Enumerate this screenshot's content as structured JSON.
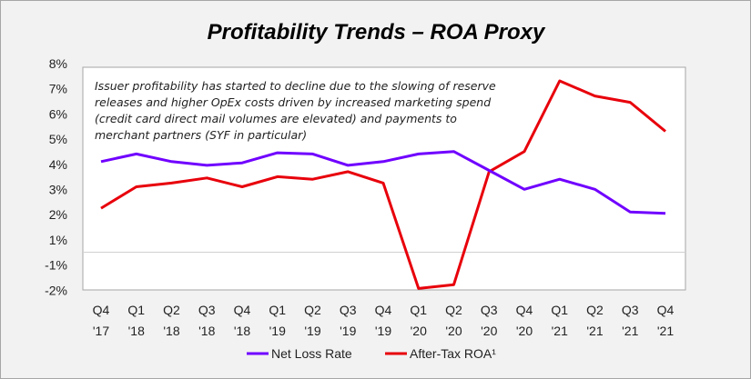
{
  "chart_data": {
    "type": "line",
    "title": "Profitability Trends – ROA Proxy",
    "xlabel": "",
    "ylabel": "",
    "ylim": [
      -2,
      8
    ],
    "y_tick_labels": [
      "8%",
      "7%",
      "6%",
      "5%",
      "4%",
      "3%",
      "2%",
      "1%",
      "-1%",
      "-2%"
    ],
    "grid": false,
    "zero_line": true,
    "categories": [
      [
        "Q4",
        "'17"
      ],
      [
        "Q1",
        "'18"
      ],
      [
        "Q2",
        "'18"
      ],
      [
        "Q3",
        "'18"
      ],
      [
        "Q4",
        "'18"
      ],
      [
        "Q1",
        "'19"
      ],
      [
        "Q2",
        "'19"
      ],
      [
        "Q3",
        "'19"
      ],
      [
        "Q4",
        "'19"
      ],
      [
        "Q1",
        "'20"
      ],
      [
        "Q2",
        "'20"
      ],
      [
        "Q3",
        "'20"
      ],
      [
        "Q4",
        "'20"
      ],
      [
        "Q1",
        "'21"
      ],
      [
        "Q2",
        "'21"
      ],
      [
        "Q3",
        "'21"
      ],
      [
        "Q4",
        "'21"
      ]
    ],
    "series": [
      {
        "name": "Net Loss Rate",
        "color": "#7000ff",
        "values": [
          4.1,
          4.4,
          4.1,
          3.95,
          4.05,
          4.45,
          4.4,
          3.95,
          4.1,
          4.4,
          4.5,
          3.75,
          3.0,
          3.4,
          3.0,
          2.1,
          2.05
        ]
      },
      {
        "name": "After-Tax ROA¹",
        "color": "#e8000b",
        "values": [
          2.25,
          3.1,
          3.25,
          3.45,
          3.1,
          3.5,
          3.4,
          3.7,
          3.25,
          -1.95,
          -1.8,
          3.7,
          4.5,
          7.3,
          6.7,
          6.45,
          5.3
        ]
      }
    ],
    "legend_position": "bottom-center",
    "annotation": [
      "Issuer profitability has started to decline due to the slowing of reserve",
      "releases and higher OpEx costs driven by increased marketing spend",
      "(credit card direct mail volumes are elevated) and payments to",
      "merchant partners (SYF in particular)"
    ]
  }
}
